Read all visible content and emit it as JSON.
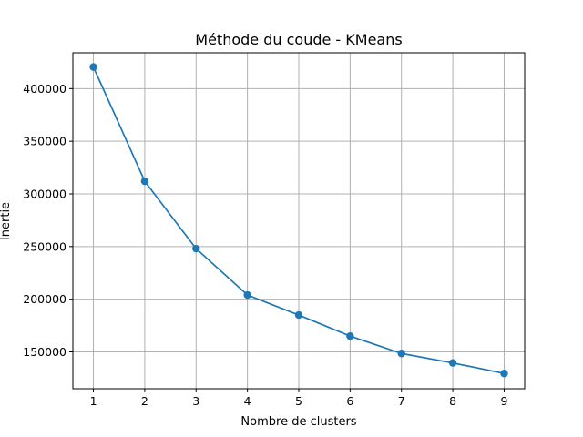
{
  "chart_data": {
    "type": "line",
    "title": "Méthode du coude - KMeans",
    "xlabel": "Nombre de clusters",
    "ylabel": "Inertie",
    "x": [
      1,
      2,
      3,
      4,
      5,
      6,
      7,
      8,
      9
    ],
    "series": [
      {
        "values": [
          420500,
          312000,
          248000,
          204000,
          185000,
          165000,
          148500,
          139500,
          129500
        ],
        "color": "#1f77b4",
        "marker": "circle"
      }
    ],
    "xlim": [
      0.6,
      9.4
    ],
    "ylim": [
      115000,
      434000
    ],
    "xticks": [
      1,
      2,
      3,
      4,
      5,
      6,
      7,
      8,
      9
    ],
    "yticks": [
      150000,
      200000,
      250000,
      300000,
      350000,
      400000
    ],
    "grid": true,
    "legend": "none"
  }
}
